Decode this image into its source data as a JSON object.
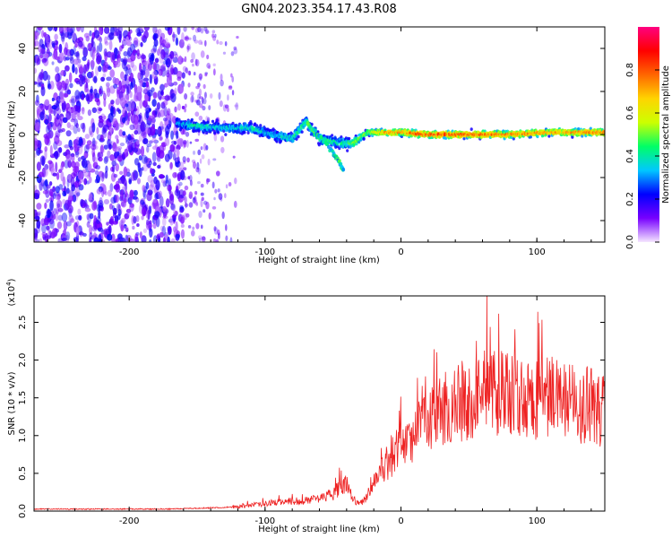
{
  "figure_title": "GN04.2023.354.17.43.R08",
  "chart_data": [
    {
      "type": "heatmap",
      "title": "GN04.2023.354.17.43.R08",
      "xlabel": "Height of straight line (km)",
      "ylabel": "Frequency (Hz)",
      "xlim": [
        -270,
        150
      ],
      "ylim": [
        -50,
        50
      ],
      "xticks": [
        -200,
        -100,
        0,
        100
      ],
      "yticks": [
        -40,
        -20,
        0,
        20,
        40
      ],
      "colorbar": {
        "label": "Normalized spectral amplitude",
        "range": [
          0.0,
          1.0
        ],
        "ticks": [
          0.0,
          0.2,
          0.4,
          0.6,
          0.8
        ],
        "colormap": [
          "#f5e6ff",
          "#7700ff",
          "#0000ff",
          "#00c8ff",
          "#00ff66",
          "#ccff00",
          "#ffd400",
          "#ff6600",
          "#ff0000",
          "#ff0080"
        ]
      },
      "regions": [
        {
          "name": "noise",
          "x_range": [
            -270,
            -160
          ],
          "freq_range": [
            -50,
            50
          ],
          "amplitude": 0.15
        },
        {
          "name": "fading-noise",
          "x_range": [
            -160,
            -120
          ],
          "freq_range": [
            -50,
            50
          ],
          "amplitude": 0.08
        }
      ],
      "signal_track": [
        {
          "x": -165,
          "freq": 5,
          "amplitude": 0.3
        },
        {
          "x": -150,
          "freq": 4,
          "amplitude": 0.4
        },
        {
          "x": -130,
          "freq": 3,
          "amplitude": 0.35
        },
        {
          "x": -110,
          "freq": 3,
          "amplitude": 0.4
        },
        {
          "x": -95,
          "freq": 0,
          "amplitude": 0.35
        },
        {
          "x": -80,
          "freq": -2,
          "amplitude": 0.4
        },
        {
          "x": -70,
          "freq": 6,
          "amplitude": 0.45
        },
        {
          "x": -60,
          "freq": -2,
          "amplitude": 0.45
        },
        {
          "x": -45,
          "freq": -4,
          "amplitude": 0.4
        },
        {
          "x": -35,
          "freq": -4,
          "amplitude": 0.5
        },
        {
          "x": -25,
          "freq": 1,
          "amplitude": 0.55
        },
        {
          "x": -10,
          "freq": 1,
          "amplitude": 0.75
        },
        {
          "x": 0,
          "freq": 1,
          "amplitude": 0.8
        },
        {
          "x": 20,
          "freq": 0,
          "amplitude": 0.85
        },
        {
          "x": 50,
          "freq": 0,
          "amplitude": 0.85
        },
        {
          "x": 80,
          "freq": 0,
          "amplitude": 0.8
        },
        {
          "x": 110,
          "freq": 1,
          "amplitude": 0.75
        },
        {
          "x": 140,
          "freq": 1,
          "amplitude": 0.8
        },
        {
          "x": 150,
          "freq": 1,
          "amplitude": 0.8
        }
      ],
      "side_branch": [
        {
          "x": -70,
          "freq": 6
        },
        {
          "x": -50,
          "freq": -8
        },
        {
          "x": -42,
          "freq": -17
        }
      ]
    },
    {
      "type": "line",
      "xlabel": "Height of straight line (km)",
      "ylabel": "SNR (10 * v/v)",
      "y_multiplier": "(x10^4)",
      "xlim": [
        -270,
        150
      ],
      "ylim": [
        0.0,
        2.85
      ],
      "xticks": [
        -200,
        -100,
        0,
        100
      ],
      "yticks": [
        0.0,
        0.5,
        1.0,
        1.5,
        2.0,
        2.5
      ],
      "color": "#ee2222",
      "series": [
        {
          "x": [
            -270,
            -250,
            -230,
            -210,
            -190,
            -170,
            -150,
            -130,
            -120,
            -110,
            -100,
            -90,
            -80,
            -70,
            -60,
            -50,
            -45,
            -40,
            -35,
            -30,
            -25,
            -20,
            -15,
            -10,
            -5,
            0,
            10,
            20,
            30,
            40,
            50,
            60,
            70,
            80,
            90,
            100,
            110,
            120,
            130,
            140,
            150
          ],
          "values": [
            0.02,
            0.02,
            0.02,
            0.02,
            0.02,
            0.02,
            0.03,
            0.04,
            0.06,
            0.08,
            0.1,
            0.12,
            0.13,
            0.14,
            0.18,
            0.22,
            0.32,
            0.35,
            0.15,
            0.1,
            0.2,
            0.45,
            0.55,
            0.65,
            0.75,
            0.85,
            1.05,
            1.2,
            1.35,
            1.45,
            1.5,
            1.55,
            1.55,
            1.55,
            1.5,
            1.5,
            1.55,
            1.45,
            1.4,
            1.4,
            1.35
          ]
        }
      ]
    }
  ]
}
